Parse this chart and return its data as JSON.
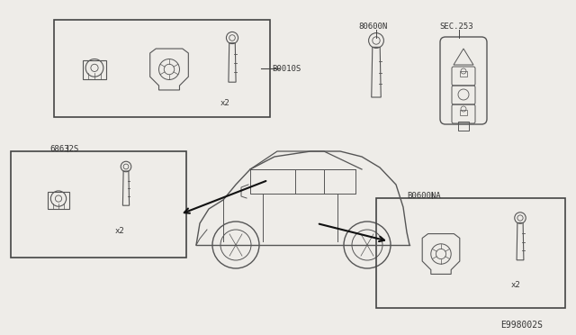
{
  "bg_color": "#eeece8",
  "line_color": "#555555",
  "box_color": "#444444",
  "diagram_id": "E998002S",
  "label_top_left_box": "B0010S",
  "label_mid_left_box": "68632S",
  "label_top_right1": "80600N",
  "label_top_right2": "SEC.253",
  "label_bottom_right_box": "B0600NA",
  "x2": "x2"
}
